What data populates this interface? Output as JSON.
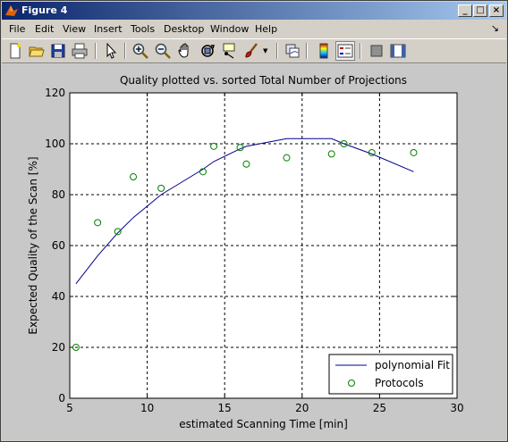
{
  "window": {
    "title": "Figure 4",
    "minimize": "_",
    "maximize": "□",
    "close": "×"
  },
  "menu": {
    "items": [
      "File",
      "Edit",
      "View",
      "Insert",
      "Tools",
      "Desktop",
      "Window",
      "Help"
    ],
    "dock_arrow": "↘"
  },
  "toolbar": {
    "icons": [
      "new-figure-icon",
      "open-file-icon",
      "save-icon",
      "print-icon",
      "pointer-icon",
      "zoom-in-icon",
      "zoom-out-icon",
      "pan-icon",
      "rotate-3d-icon",
      "data-cursor-icon",
      "brush-icon",
      "link-plot-icon",
      "colorbar-icon",
      "legend-icon",
      "hide-plot-tools-icon",
      "show-plot-tools-icon"
    ]
  },
  "chart_data": {
    "type": "line",
    "title": "Quality plotted vs. sorted Total Number of Projections",
    "xlabel": "estimated Scanning Time [min]",
    "ylabel": "Expected Quality of the Scan [%]",
    "xlim": [
      5,
      30
    ],
    "ylim": [
      0,
      120
    ],
    "xticks": [
      5,
      10,
      15,
      20,
      25,
      30
    ],
    "yticks": [
      0,
      20,
      40,
      60,
      80,
      100,
      120
    ],
    "grid": true,
    "legend_position": "bottom-right",
    "colors": {
      "fit": "#00008b",
      "points": "#008000"
    },
    "series": [
      {
        "name": "polynomial Fit",
        "style": "line",
        "x": [
          5.4,
          6.8,
          8.1,
          9.1,
          10.9,
          13.6,
          14.3,
          16.0,
          16.4,
          19.0,
          21.9,
          22.7,
          24.5,
          27.2
        ],
        "y": [
          45,
          56,
          65,
          71,
          80,
          90,
          93,
          98,
          99,
          102,
          102,
          100,
          96,
          89
        ]
      },
      {
        "name": "Protocols",
        "style": "markers",
        "x": [
          5.4,
          6.8,
          8.1,
          9.1,
          10.9,
          13.6,
          14.3,
          16.0,
          16.4,
          19.0,
          21.9,
          22.7,
          24.5,
          27.2
        ],
        "y": [
          20,
          69,
          65.5,
          87,
          82.5,
          89,
          99,
          98.5,
          92,
          94.5,
          96,
          100,
          96.5,
          96.5
        ]
      }
    ]
  }
}
